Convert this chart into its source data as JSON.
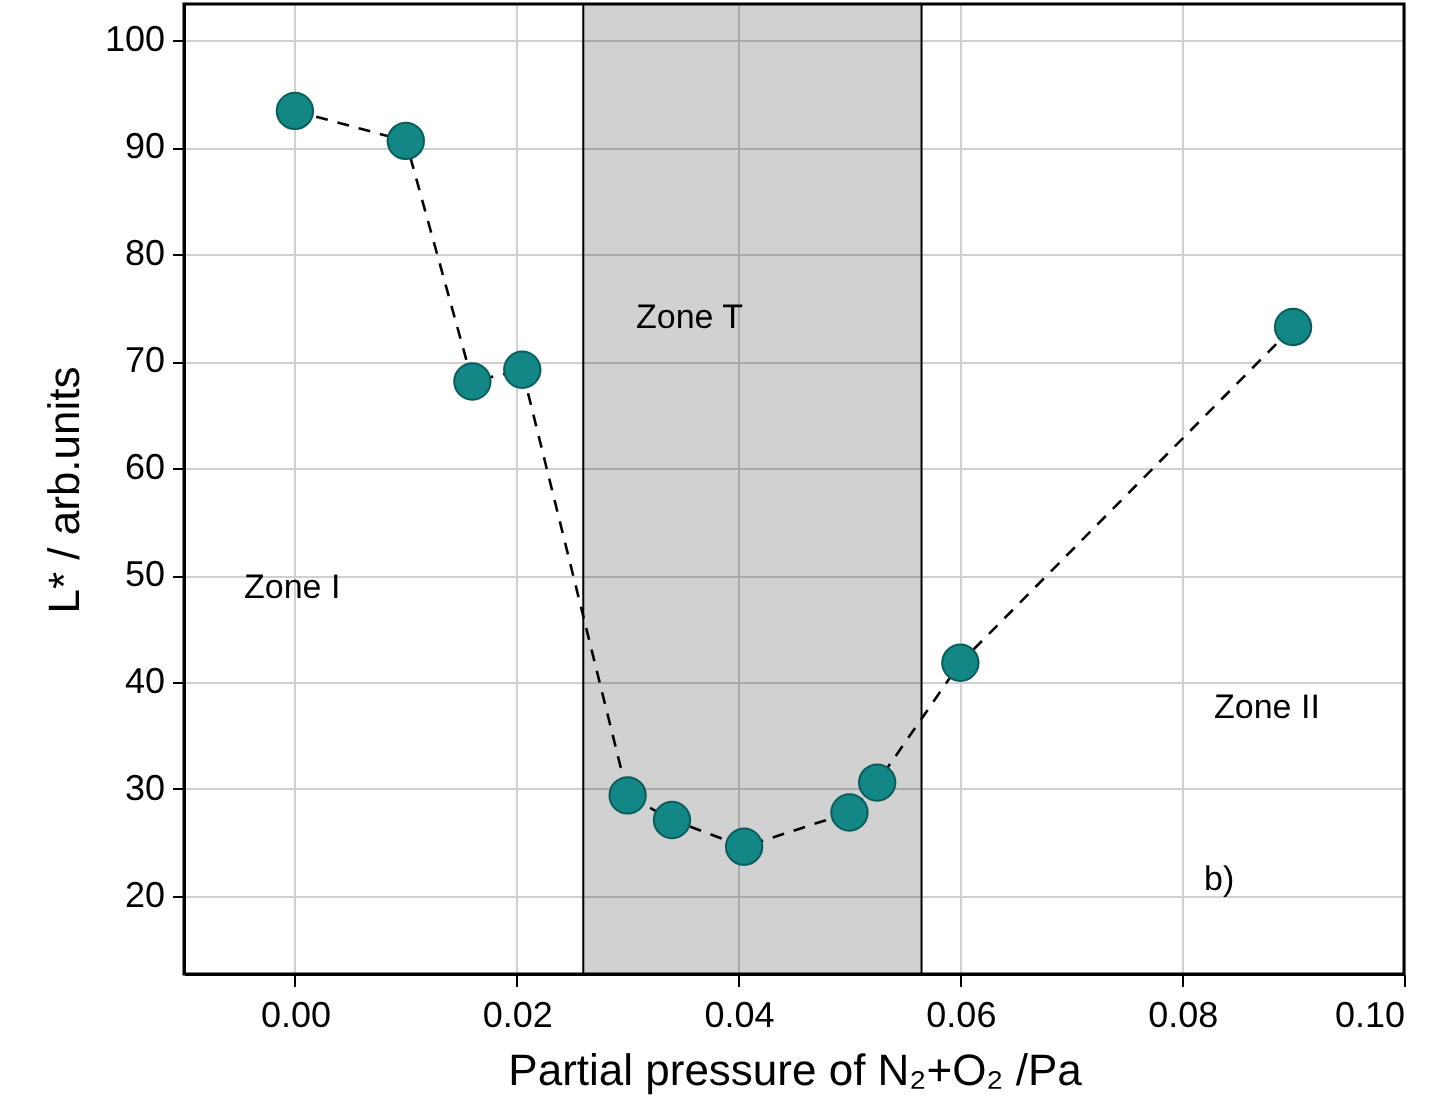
{
  "chart_data": {
    "type": "line",
    "xlabel": "Partial pressure of N₂+O₂ /Pa",
    "ylabel": "L* / arb.units",
    "x": [
      0.0,
      0.01,
      0.016,
      0.0205,
      0.03,
      0.034,
      0.0405,
      0.05,
      0.0525,
      0.06,
      0.09
    ],
    "series": [
      {
        "color": "#138785",
        "values": [
          93.4,
          90.6,
          68.1,
          69.2,
          29.4,
          27.1,
          24.6,
          27.8,
          30.6,
          41.8,
          73.2
        ]
      }
    ],
    "xlim": [
      -0.01,
      0.1
    ],
    "xticks": [
      {
        "value": 0.0,
        "label": "0.00"
      },
      {
        "value": 0.02,
        "label": "0.02"
      },
      {
        "value": 0.04,
        "label": "0.04"
      },
      {
        "value": 0.06,
        "label": "0.06"
      },
      {
        "value": 0.08,
        "label": "0.08"
      },
      {
        "value": 0.1,
        "label": "0.10"
      }
    ],
    "ylim": [
      12.7,
      103.4
    ],
    "yticks": [
      20,
      30,
      40,
      50,
      60,
      70,
      80,
      90,
      100
    ],
    "bands": [
      {
        "axis": "x",
        "from": 0.026,
        "to": 0.0565,
        "color": "#000000"
      }
    ],
    "annotations": [
      "Zone I",
      "Zone T",
      "Zone II",
      "b)"
    ],
    "marker": "circle",
    "line_style": "dashed",
    "grid": true,
    "legend": false
  }
}
